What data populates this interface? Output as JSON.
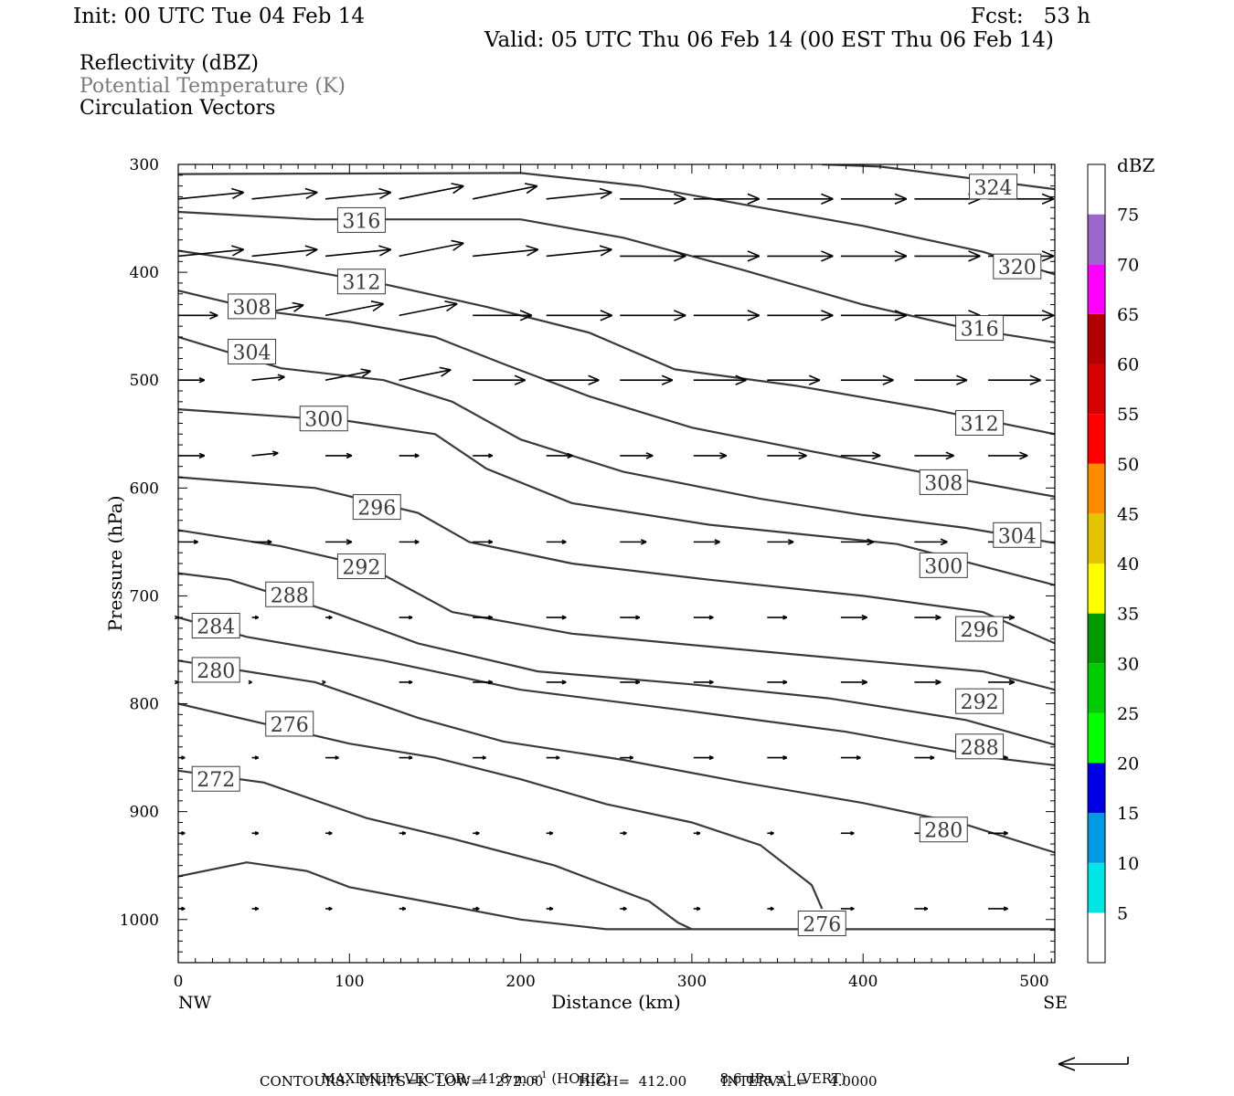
{
  "header": {
    "init": "Init: 00 UTC Tue 04 Feb 14",
    "fcst": "Fcst:   53 h",
    "valid": "Valid: 05 UTC Thu 06 Feb 14 (00 EST Thu 06 Feb 14)"
  },
  "fields": [
    {
      "label": "Reflectivity (dBZ)",
      "color": "#000000"
    },
    {
      "label": "Potential Temperature (K)",
      "color": "#7a7a7a"
    },
    {
      "label": "Circulation Vectors",
      "color": "#000000"
    }
  ],
  "chart_data": {
    "type": "cross-section",
    "xlabel": "Distance (km)",
    "ylabel": "Pressure (hPa)",
    "xlim": [
      0,
      512
    ],
    "ylim": [
      1040,
      300
    ],
    "x_ticks": [
      "0",
      "100",
      "200",
      "300",
      "400",
      "500"
    ],
    "x_tick_values": [
      0,
      100,
      200,
      300,
      400,
      500
    ],
    "y_ticks": [
      "300",
      "400",
      "500",
      "600",
      "700",
      "800",
      "900",
      "1000"
    ],
    "y_tick_values": [
      300,
      400,
      500,
      600,
      700,
      800,
      900,
      1000
    ],
    "endpoints": {
      "left": "NW",
      "right": "SE"
    },
    "theta_isolines": [
      {
        "label": "324",
        "points": [
          [
            376,
            300
          ],
          [
            410,
            302
          ],
          [
            512,
            323
          ]
        ],
        "label_at": [
          476,
          321
        ]
      },
      {
        "label": "320",
        "points": [
          [
            0,
            309
          ],
          [
            200,
            308
          ],
          [
            270,
            320
          ],
          [
            340,
            340
          ],
          [
            400,
            357
          ],
          [
            470,
            381
          ],
          [
            512,
            402
          ]
        ],
        "label_at": [
          490,
          395
        ]
      },
      {
        "label": "316",
        "points": [
          [
            0,
            344
          ],
          [
            80,
            351
          ],
          [
            200,
            351
          ],
          [
            260,
            368
          ],
          [
            330,
            398
          ],
          [
            400,
            430
          ],
          [
            460,
            452
          ],
          [
            512,
            465
          ]
        ],
        "label_at": [
          107,
          352
        ]
      },
      {
        "label": "312",
        "points": [
          [
            0,
            380
          ],
          [
            60,
            394
          ],
          [
            120,
            411
          ],
          [
            180,
            432
          ],
          [
            240,
            456
          ],
          [
            290,
            490
          ],
          [
            360,
            505
          ],
          [
            440,
            527
          ],
          [
            512,
            550
          ]
        ],
        "label_at": [
          107,
          409
        ]
      },
      {
        "label": "308",
        "points": [
          [
            0,
            417
          ],
          [
            50,
            436
          ],
          [
            100,
            446
          ],
          [
            150,
            460
          ],
          [
            190,
            485
          ],
          [
            240,
            515
          ],
          [
            300,
            544
          ],
          [
            370,
            566
          ],
          [
            440,
            587
          ],
          [
            512,
            608
          ]
        ],
        "label_at": [
          43,
          432
        ]
      },
      {
        "label": "304",
        "points": [
          [
            0,
            460
          ],
          [
            60,
            489
          ],
          [
            120,
            500
          ],
          [
            160,
            520
          ],
          [
            200,
            555
          ],
          [
            260,
            585
          ],
          [
            340,
            610
          ],
          [
            400,
            625
          ],
          [
            460,
            637
          ],
          [
            512,
            651
          ]
        ],
        "label_at": [
          43,
          474
        ]
      },
      {
        "label": "300",
        "points": [
          [
            0,
            527
          ],
          [
            100,
            538
          ],
          [
            150,
            550
          ],
          [
            180,
            582
          ],
          [
            230,
            614
          ],
          [
            310,
            634
          ],
          [
            420,
            652
          ],
          [
            512,
            690
          ]
        ],
        "label_at": [
          85,
          536
        ]
      },
      {
        "label": "296",
        "points": [
          [
            0,
            590
          ],
          [
            80,
            600
          ],
          [
            140,
            623
          ],
          [
            170,
            650
          ],
          [
            230,
            670
          ],
          [
            310,
            685
          ],
          [
            400,
            700
          ],
          [
            470,
            715
          ],
          [
            512,
            744
          ]
        ],
        "label_at": [
          116,
          618
        ]
      },
      {
        "label": "292",
        "points": [
          [
            0,
            639
          ],
          [
            60,
            654
          ],
          [
            110,
            672
          ],
          [
            160,
            715
          ],
          [
            230,
            735
          ],
          [
            310,
            747
          ],
          [
            400,
            760
          ],
          [
            470,
            770
          ],
          [
            512,
            787
          ]
        ],
        "label_at": [
          107,
          673
        ]
      },
      {
        "label": "288",
        "points": [
          [
            0,
            679
          ],
          [
            30,
            685
          ],
          [
            90,
            715
          ],
          [
            140,
            744
          ],
          [
            210,
            770
          ],
          [
            300,
            782
          ],
          [
            380,
            795
          ],
          [
            460,
            815
          ],
          [
            512,
            838
          ]
        ],
        "label_at": [
          65,
          699
        ]
      },
      {
        "label": "284",
        "points": [
          [
            0,
            720
          ],
          [
            40,
            738
          ],
          [
            120,
            760
          ],
          [
            200,
            787
          ],
          [
            300,
            807
          ],
          [
            390,
            826
          ],
          [
            470,
            849
          ],
          [
            512,
            857
          ]
        ],
        "label_at": [
          22,
          728
        ]
      },
      {
        "label": "280",
        "points": [
          [
            0,
            760
          ],
          [
            80,
            780
          ],
          [
            140,
            813
          ],
          [
            190,
            835
          ],
          [
            260,
            852
          ],
          [
            330,
            873
          ],
          [
            400,
            892
          ],
          [
            460,
            912
          ],
          [
            512,
            938
          ]
        ],
        "label_at": [
          22,
          769
        ]
      },
      {
        "label": "276",
        "points": [
          [
            0,
            800
          ],
          [
            100,
            837
          ],
          [
            150,
            850
          ],
          [
            200,
            870
          ],
          [
            250,
            893
          ],
          [
            300,
            910
          ],
          [
            340,
            931
          ],
          [
            370,
            968
          ],
          [
            376,
            990
          ]
        ],
        "label_at": [
          65,
          819
        ]
      },
      {
        "label": "276",
        "points": [
          [
            0,
            862
          ],
          [
            50,
            873
          ],
          [
            110,
            906
          ],
          [
            160,
            925
          ],
          [
            220,
            950
          ],
          [
            275,
            983
          ],
          [
            292,
            1003
          ],
          [
            300,
            1009
          ]
        ],
        "label_at": [
          22,
          870
        ]
      },
      {
        "label": "276",
        "points": [
          [
            300,
            1009
          ],
          [
            512,
            1009
          ]
        ],
        "label_at": [
          376,
          1004
        ]
      },
      {
        "label": "272",
        "points": [
          [
            0,
            960
          ],
          [
            40,
            947
          ],
          [
            75,
            955
          ],
          [
            100,
            970
          ],
          [
            150,
            985
          ],
          [
            200,
            1000
          ],
          [
            250,
            1009
          ],
          [
            300,
            1009
          ]
        ],
        "label_at": [
          22,
          962
        ]
      }
    ],
    "theta_labels": [
      {
        "text": "324",
        "x": 476,
        "y": 321
      },
      {
        "text": "320",
        "x": 490,
        "y": 395
      },
      {
        "text": "316",
        "x": 107,
        "y": 352
      },
      {
        "text": "316",
        "x": 468,
        "y": 452
      },
      {
        "text": "312",
        "x": 107,
        "y": 409
      },
      {
        "text": "312",
        "x": 468,
        "y": 540
      },
      {
        "text": "308",
        "x": 43,
        "y": 432
      },
      {
        "text": "308",
        "x": 447,
        "y": 595
      },
      {
        "text": "304",
        "x": 43,
        "y": 474
      },
      {
        "text": "304",
        "x": 490,
        "y": 644
      },
      {
        "text": "300",
        "x": 85,
        "y": 536
      },
      {
        "text": "300",
        "x": 447,
        "y": 672
      },
      {
        "text": "296",
        "x": 116,
        "y": 618
      },
      {
        "text": "296",
        "x": 468,
        "y": 731
      },
      {
        "text": "292",
        "x": 107,
        "y": 673
      },
      {
        "text": "292",
        "x": 468,
        "y": 798
      },
      {
        "text": "288",
        "x": 65,
        "y": 699
      },
      {
        "text": "288",
        "x": 468,
        "y": 840
      },
      {
        "text": "284",
        "x": 22,
        "y": 728
      },
      {
        "text": "280",
        "x": 22,
        "y": 769
      },
      {
        "text": "280",
        "x": 447,
        "y": 917
      },
      {
        "text": "276",
        "x": 65,
        "y": 819
      },
      {
        "text": "276",
        "x": 376,
        "y": 1004
      },
      {
        "text": "272",
        "x": 22,
        "y": 870
      }
    ],
    "vectors": [
      {
        "p": 332,
        "u": [
          1.0,
          1.0,
          1.0,
          1.0,
          1.0,
          1.0,
          1.0,
          1.0,
          1.0,
          1.0,
          1.0,
          1.0
        ],
        "w": [
          0.1,
          0.1,
          0.1,
          0.2,
          0.2,
          0.1,
          0.0,
          0.0,
          0.0,
          0.0,
          0.0,
          0.0
        ]
      },
      {
        "p": 385,
        "u": [
          1.0,
          1.0,
          1.0,
          1.0,
          1.0,
          1.0,
          1.0,
          1.0,
          1.0,
          1.0,
          1.0,
          1.0
        ],
        "w": [
          0.1,
          0.1,
          0.1,
          0.2,
          0.1,
          0.1,
          0.0,
          0.0,
          0.0,
          0.0,
          0.0,
          0.0
        ]
      },
      {
        "p": 440,
        "u": [
          0.6,
          0.8,
          0.9,
          0.9,
          0.9,
          1.0,
          1.0,
          1.0,
          1.0,
          1.0,
          1.0,
          1.0
        ],
        "w": [
          0.0,
          0.2,
          0.2,
          0.2,
          0.0,
          0.0,
          0.0,
          0.0,
          0.0,
          0.0,
          0.0,
          0.0
        ]
      },
      {
        "p": 500,
        "u": [
          0.4,
          0.5,
          0.7,
          0.8,
          0.8,
          0.8,
          0.8,
          0.8,
          0.8,
          0.8,
          0.8,
          0.8
        ],
        "w": [
          0.0,
          0.1,
          0.2,
          0.2,
          0.0,
          0.0,
          0.0,
          0.0,
          0.0,
          0.0,
          0.0,
          0.0
        ]
      },
      {
        "p": 570,
        "u": [
          0.4,
          0.4,
          0.4,
          0.3,
          0.3,
          0.4,
          0.5,
          0.5,
          0.6,
          0.6,
          0.6,
          0.6
        ],
        "w": [
          0.0,
          0.1,
          0.0,
          0.0,
          0.0,
          0.0,
          0.0,
          0.0,
          0.0,
          0.0,
          0.0,
          0.0
        ]
      },
      {
        "p": 650,
        "u": [
          0.3,
          0.3,
          0.4,
          0.3,
          0.3,
          0.3,
          0.4,
          0.4,
          0.4,
          0.5,
          0.5,
          0.5
        ],
        "w": [
          0.0,
          0.0,
          0.0,
          0.0,
          0.0,
          0.0,
          0.0,
          0.0,
          0.0,
          0.0,
          0.0,
          0.0
        ]
      },
      {
        "p": 720,
        "u": [
          0.0,
          0.1,
          0.1,
          0.2,
          0.3,
          0.3,
          0.3,
          0.3,
          0.3,
          0.4,
          0.4,
          0.4
        ],
        "w": [
          0.0,
          0.0,
          0.0,
          0.0,
          0.0,
          0.0,
          0.0,
          0.0,
          0.0,
          0.0,
          0.0,
          0.0
        ]
      },
      {
        "p": 780,
        "u": [
          0.0,
          0.0,
          0.0,
          0.2,
          0.3,
          0.3,
          0.3,
          0.3,
          0.3,
          0.4,
          0.4,
          0.4
        ],
        "w": [
          0.0,
          0.0,
          0.0,
          0.0,
          0.0,
          0.0,
          0.0,
          0.0,
          0.0,
          0.0,
          0.0,
          0.0
        ]
      },
      {
        "p": 850,
        "u": [
          0.1,
          0.1,
          0.2,
          0.2,
          0.2,
          0.2,
          0.2,
          0.3,
          0.3,
          0.3,
          0.3,
          0.3
        ],
        "w": [
          0.0,
          0.0,
          0.0,
          0.0,
          0.0,
          0.0,
          0.0,
          0.0,
          0.0,
          0.0,
          0.0,
          0.0
        ]
      },
      {
        "p": 920,
        "u": [
          0.1,
          0.1,
          0.1,
          0.1,
          0.1,
          0.1,
          0.1,
          0.1,
          0.1,
          0.2,
          0.2,
          0.3
        ],
        "w": [
          0.0,
          0.0,
          0.0,
          0.0,
          0.0,
          0.0,
          0.0,
          0.0,
          0.0,
          0.0,
          0.0,
          0.0
        ]
      },
      {
        "p": 990,
        "u": [
          0.1,
          0.1,
          0.1,
          0.1,
          0.1,
          0.1,
          0.1,
          0.1,
          0.1,
          0.2,
          0.2,
          0.3
        ],
        "w": [
          0.0,
          0.0,
          0.0,
          0.0,
          0.0,
          0.0,
          0.0,
          0.0,
          0.0,
          0.0,
          0.0,
          0.0
        ]
      }
    ],
    "colorbar": {
      "title": "dBZ",
      "labels": [
        "5",
        "10",
        "15",
        "20",
        "25",
        "30",
        "35",
        "40",
        "45",
        "50",
        "55",
        "60",
        "65",
        "70",
        "75"
      ],
      "colors": [
        "#ffffff",
        "#00e6e6",
        "#0099e6",
        "#0000e6",
        "#00ff00",
        "#00cc00",
        "#009900",
        "#ffff00",
        "#e6c300",
        "#ff8c00",
        "#ff0000",
        "#d60000",
        "#b30000",
        "#ff00ff",
        "#9966cc",
        "#ffffff"
      ]
    }
  },
  "footer": {
    "max_vector": "MAXIMUM VECTOR:  41.8 m s",
    "max_vector_unit2": "(HORIZ)",
    "vert": "8.6 dPa s",
    "vert_unit2": "(VERT)",
    "exp": "-1",
    "contours": "CONTOURS:  UNITS=K  LOW=   272.00        HIGH=  412.00        INTERVAL=     4.0000"
  }
}
